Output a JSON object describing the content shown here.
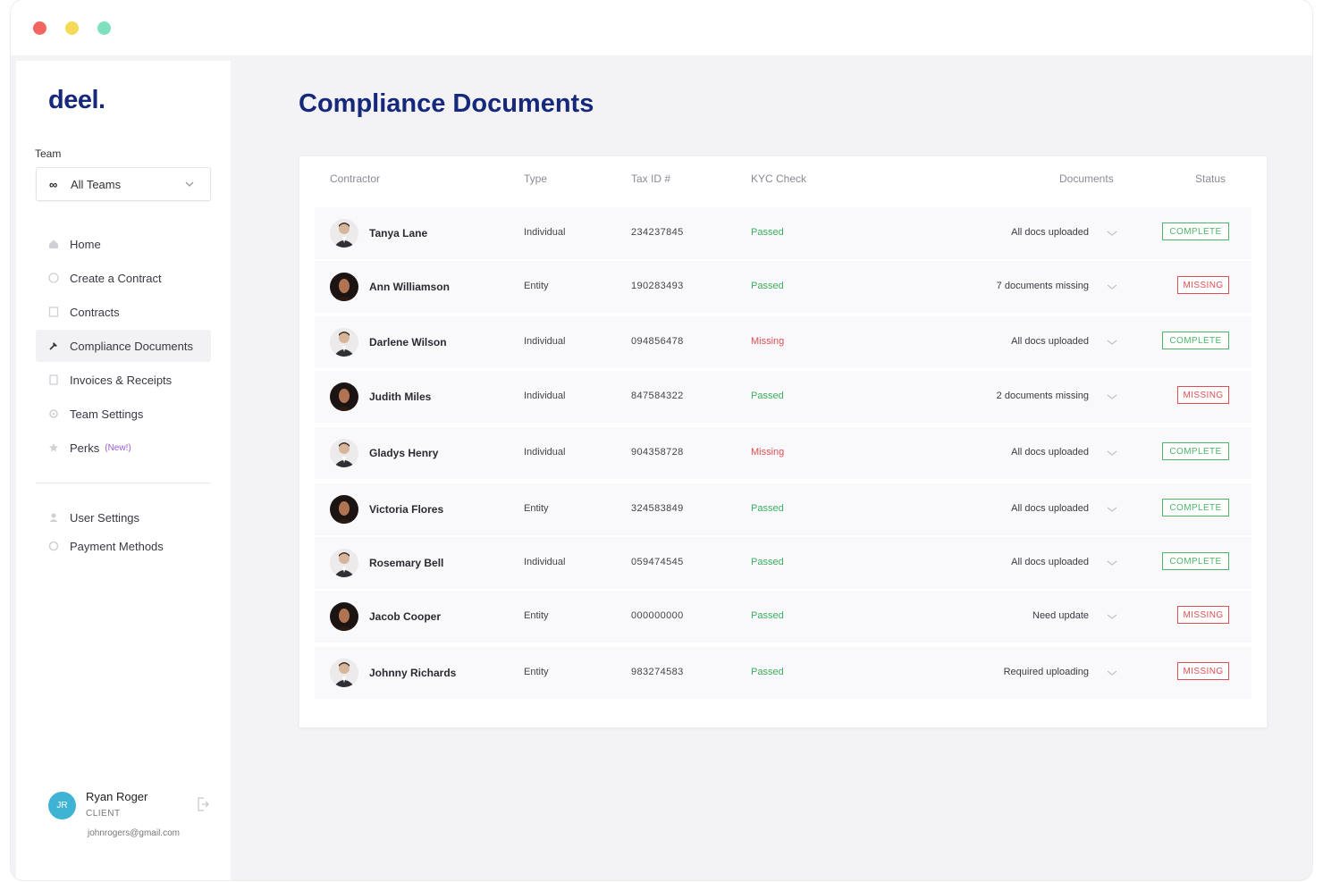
{
  "window": {
    "controls": [
      "close",
      "minimize",
      "maximize"
    ]
  },
  "sidebar": {
    "logo": "deel.",
    "team_label": "Team",
    "team_select": {
      "icon": "infinity-icon",
      "value": "All Teams"
    },
    "nav": [
      {
        "label": "Home",
        "icon": "home-icon"
      },
      {
        "label": "Create a Contract",
        "icon": "plus-circle-icon"
      },
      {
        "label": "Contracts",
        "icon": "document-icon"
      },
      {
        "label": "Compliance Documents",
        "icon": "hammer-icon",
        "active": true
      },
      {
        "label": "Invoices & Receipts",
        "icon": "receipt-icon"
      },
      {
        "label": "Team Settings",
        "icon": "gear-icon"
      },
      {
        "label": "Perks",
        "badge": "(New!)",
        "icon": "star-icon"
      }
    ],
    "nav_secondary": [
      {
        "label": "User Settings",
        "icon": "user-icon"
      },
      {
        "label": "Payment Methods",
        "icon": "card-icon"
      }
    ],
    "user": {
      "initials": "JR",
      "name": "Ryan Roger",
      "role": "CLIENT",
      "email": "johnrogers@gmail.com"
    }
  },
  "main": {
    "title": "Compliance Documents",
    "table": {
      "columns": [
        "Contractor",
        "Type",
        "Tax ID #",
        "KYC Check",
        "Documents",
        "Status"
      ],
      "rows": [
        {
          "name": "Tanya Lane",
          "type": "Individual",
          "tax_id": "234237845",
          "kyc": "Passed",
          "documents": "All docs uploaded",
          "status": "COMPLETE",
          "avatar": "light"
        },
        {
          "name": "Ann Williamson",
          "type": "Entity",
          "tax_id": "190283493",
          "kyc": "Passed",
          "documents": "7 documents missing",
          "status": "MISSING",
          "avatar": "dark"
        },
        {
          "name": "Darlene Wilson",
          "type": "Individual",
          "tax_id": "094856478",
          "kyc": "Missing",
          "documents": "All docs uploaded",
          "status": "COMPLETE",
          "avatar": "light"
        },
        {
          "name": "Judith Miles",
          "type": "Individual",
          "tax_id": "847584322",
          "kyc": "Passed",
          "documents": "2 documents missing",
          "status": "MISSING",
          "avatar": "dark"
        },
        {
          "name": "Gladys Henry",
          "type": "Individual",
          "tax_id": "904358728",
          "kyc": "Missing",
          "documents": "All docs uploaded",
          "status": "COMPLETE",
          "avatar": "light"
        },
        {
          "name": "Victoria Flores",
          "type": "Entity",
          "tax_id": "324583849",
          "kyc": "Passed",
          "documents": "All docs uploaded",
          "status": "COMPLETE",
          "avatar": "dark"
        },
        {
          "name": "Rosemary Bell",
          "type": "Individual",
          "tax_id": "059474545",
          "kyc": "Passed",
          "documents": "All docs uploaded",
          "status": "COMPLETE",
          "avatar": "light"
        },
        {
          "name": "Jacob Cooper",
          "type": "Entity",
          "tax_id": "000000000",
          "kyc": "Passed",
          "documents": "Need update",
          "status": "MISSING",
          "avatar": "dark"
        },
        {
          "name": "Johnny Richards",
          "type": "Entity",
          "tax_id": "983274583",
          "kyc": "Passed",
          "documents": "Required uploading",
          "status": "MISSING",
          "avatar": "light"
        }
      ]
    }
  },
  "colors": {
    "brand": "#16287a",
    "passed": "#3cae5e",
    "missing": "#e04e54",
    "complete": "#4cb56a",
    "perks_badge": "#9b5bd3"
  }
}
